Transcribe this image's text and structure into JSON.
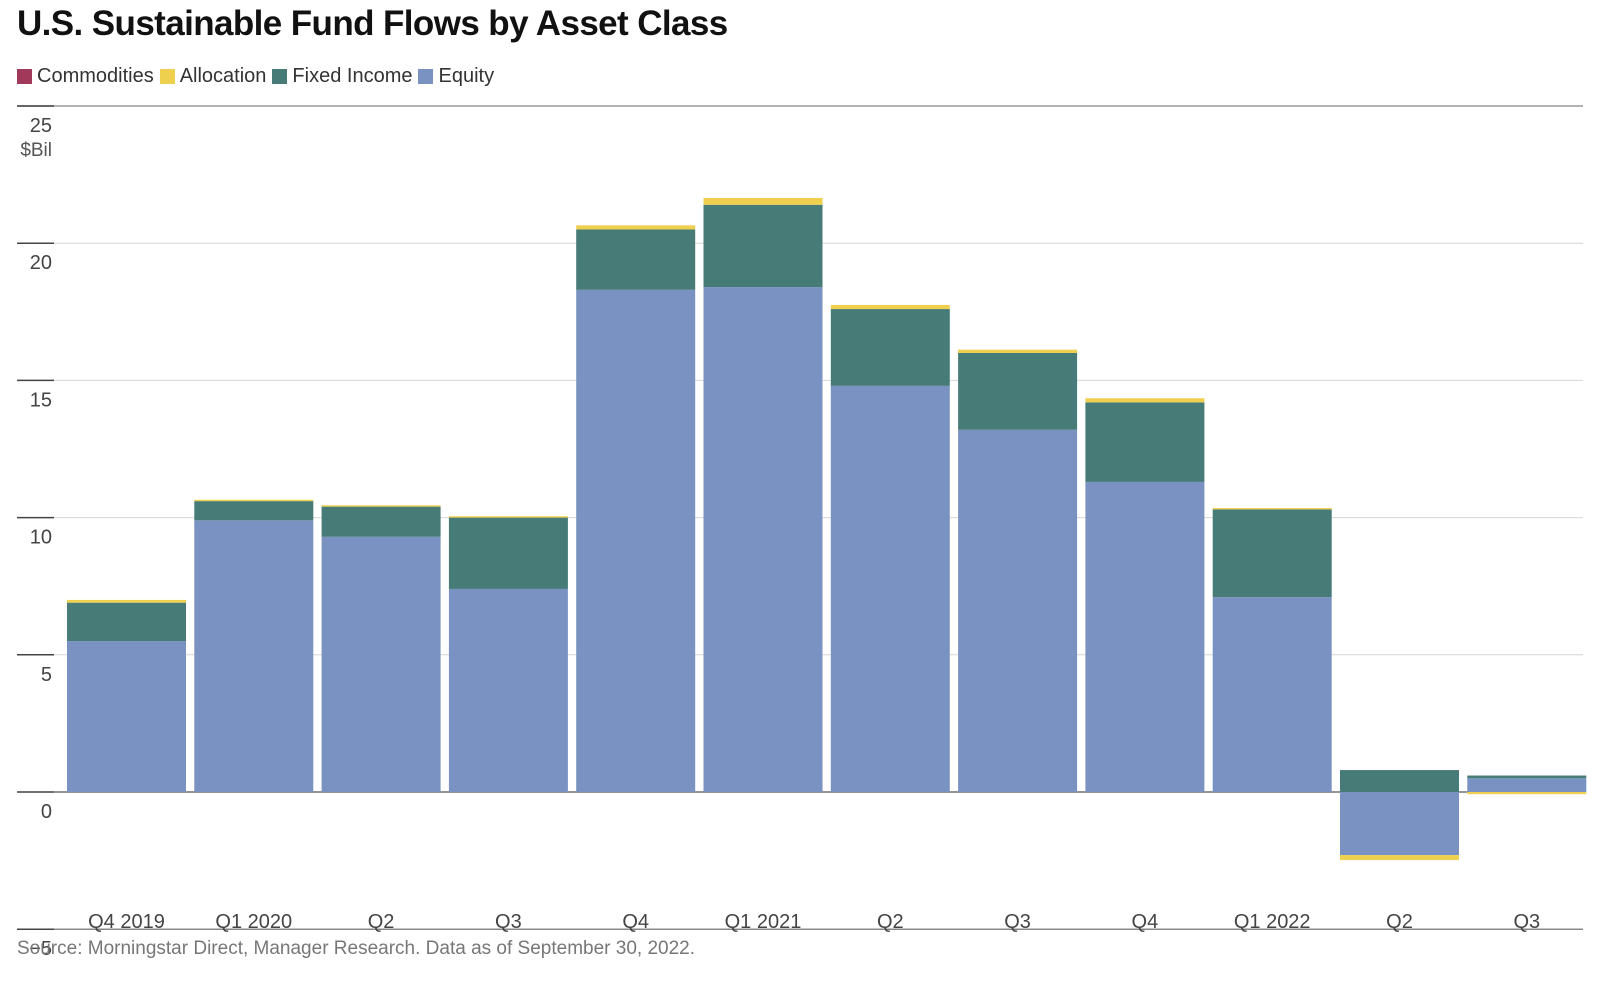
{
  "chart_data": {
    "type": "bar",
    "stacked": true,
    "title": "U.S. Sustainable Fund Flows by Asset Class",
    "ylabel": "$Bil",
    "ylim": [
      -5,
      25
    ],
    "yticks": [
      25,
      20,
      15,
      10,
      5,
      0,
      -5
    ],
    "ytick_labels": [
      "25",
      "20",
      "15",
      "10",
      "5",
      "0",
      "−5"
    ],
    "grid": true,
    "legend_position": "top-left",
    "categories": [
      "Q4 2019",
      "Q1 2020",
      "Q2",
      "Q3",
      "Q4",
      "Q1 2021",
      "Q2",
      "Q3",
      "Q4",
      "Q1 2022",
      "Q2",
      "Q3"
    ],
    "series": [
      {
        "name": "Equity",
        "color": "#7a92c2",
        "values": [
          5.5,
          9.9,
          9.3,
          7.4,
          18.3,
          18.4,
          14.8,
          13.2,
          11.3,
          7.1,
          -2.3,
          0.5
        ]
      },
      {
        "name": "Fixed Income",
        "color": "#477b78",
        "values": [
          1.4,
          0.7,
          1.1,
          2.6,
          2.2,
          3.0,
          2.8,
          2.8,
          2.9,
          3.2,
          0.8,
          0.1
        ]
      },
      {
        "name": "Allocation",
        "color": "#efcf4e",
        "values": [
          0.1,
          0.05,
          0.05,
          0.05,
          0.15,
          0.25,
          0.15,
          0.12,
          0.15,
          0.05,
          -0.18,
          -0.08
        ]
      },
      {
        "name": "Commodities",
        "color": "#a0395a",
        "values": [
          0,
          0,
          0,
          0,
          0,
          0,
          0,
          0,
          0,
          0,
          0,
          0
        ]
      }
    ],
    "source": "Source: Morningstar Direct, Manager Research. Data as of September 30, 2022."
  },
  "legend": [
    {
      "label": "Commodities",
      "color": "#a0395a"
    },
    {
      "label": "Allocation",
      "color": "#efcf4e"
    },
    {
      "label": "Fixed Income",
      "color": "#477b78"
    },
    {
      "label": "Equity",
      "color": "#7a92c2"
    }
  ]
}
